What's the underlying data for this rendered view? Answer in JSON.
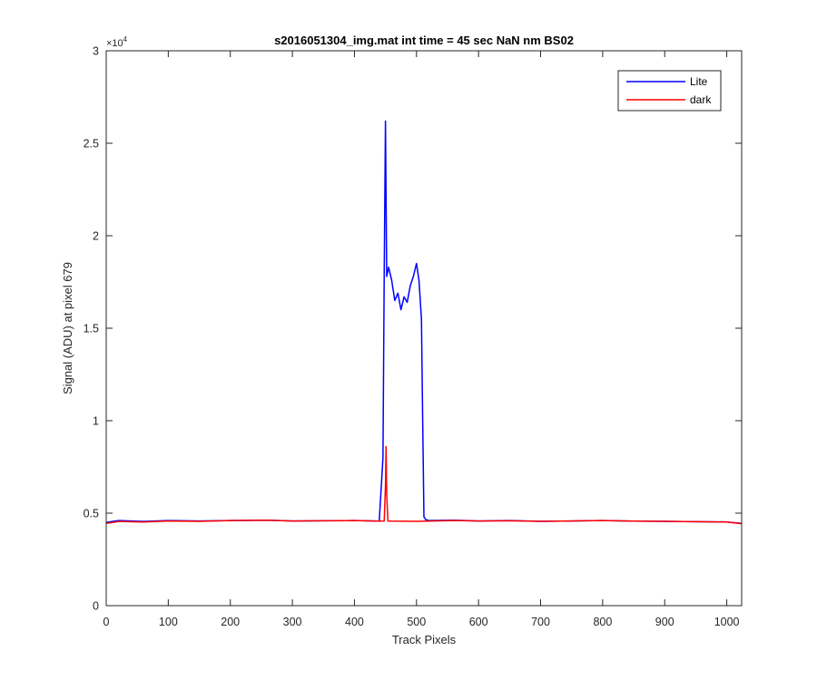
{
  "chart_data": {
    "type": "line",
    "title": "s2016051304_img.mat int time = 45 sec  NaN nm BS02",
    "xlabel": "Track Pixels",
    "ylabel": "Signal (ADU) at pixel 679",
    "xlim": [
      0,
      1024
    ],
    "ylim": [
      0,
      30000
    ],
    "xticks": [
      0,
      100,
      200,
      300,
      400,
      500,
      600,
      700,
      800,
      900,
      1000
    ],
    "yticks": [
      0,
      5000,
      10000,
      15000,
      20000,
      25000,
      30000
    ],
    "ytick_labels": [
      "0",
      "0.5",
      "1",
      "1.5",
      "2",
      "2.5",
      "3"
    ],
    "y_exponent_base": "×10",
    "y_exponent_power": "4",
    "grid": false,
    "legend_position": "top-right",
    "series": [
      {
        "name": "Lite",
        "color": "#0000ff",
        "x": [
          0,
          20,
          60,
          100,
          150,
          200,
          260,
          300,
          350,
          400,
          440,
          446,
          448,
          450,
          452,
          455,
          460,
          465,
          470,
          475,
          480,
          485,
          490,
          495,
          500,
          504,
          508,
          510,
          512,
          515,
          520,
          560,
          600,
          650,
          700,
          750,
          800,
          850,
          900,
          950,
          1000,
          1024
        ],
        "y": [
          4500,
          4600,
          4550,
          4600,
          4580,
          4600,
          4620,
          4580,
          4590,
          4600,
          4570,
          8000,
          18000,
          26200,
          17800,
          18300,
          17600,
          16500,
          16900,
          16000,
          16700,
          16400,
          17300,
          17800,
          18500,
          17600,
          15500,
          10000,
          4800,
          4650,
          4600,
          4620,
          4580,
          4600,
          4560,
          4580,
          4600,
          4570,
          4560,
          4540,
          4520,
          4450
        ]
      },
      {
        "name": "dark",
        "color": "#ff0000",
        "x": [
          0,
          20,
          60,
          100,
          150,
          200,
          260,
          300,
          350,
          400,
          440,
          448,
          450,
          451,
          452,
          454,
          460,
          500,
          560,
          600,
          650,
          700,
          750,
          800,
          850,
          900,
          950,
          1000,
          1024
        ],
        "y": [
          4450,
          4550,
          4520,
          4580,
          4560,
          4600,
          4620,
          4580,
          4590,
          4600,
          4570,
          4580,
          6500,
          8600,
          6000,
          4580,
          4570,
          4560,
          4600,
          4580,
          4590,
          4560,
          4580,
          4600,
          4570,
          4560,
          4540,
          4520,
          4430
        ]
      }
    ]
  }
}
